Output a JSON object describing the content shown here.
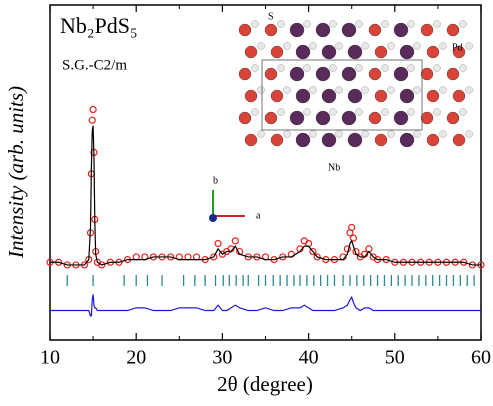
{
  "chart_data": {
    "type": "line",
    "title": "Nb₂PdS₅",
    "subtitle": "S.G.-C2/m",
    "xlabel": "2θ (degree)",
    "ylabel": "Intensity (arb. units)",
    "annotations": [
      "S",
      "Pd",
      "Nb",
      "b",
      "a"
    ],
    "xlim": [
      10,
      60
    ],
    "xticks": [
      10,
      20,
      30,
      40,
      50,
      60
    ],
    "xminorticks": [
      15,
      25,
      35,
      45,
      55
    ],
    "ylim": [
      0,
      125
    ],
    "x": [
      10,
      11,
      12,
      13,
      14,
      14.5,
      14.7,
      14.8,
      14.9,
      15.0,
      15.1,
      15.2,
      15.3,
      15.5,
      16,
      17,
      18,
      19,
      20,
      21,
      22,
      23,
      24,
      25,
      26,
      27,
      28,
      29,
      29.5,
      30,
      30.5,
      31,
      31.5,
      32,
      33,
      34,
      35,
      36,
      37,
      38,
      39,
      39.5,
      40,
      40.5,
      41,
      42,
      43,
      44,
      44.5,
      44.8,
      45,
      45.2,
      45.5,
      46,
      46.5,
      47,
      47.5,
      48,
      49,
      50,
      51,
      52,
      53,
      54,
      55,
      56,
      57,
      58,
      59,
      60
    ],
    "series": [
      {
        "color": "#e8201a",
        "style": "markers",
        "values": [
          29,
          29,
          28,
          28,
          28,
          30,
          40,
          62,
          82,
          86,
          70,
          45,
          33,
          29,
          28,
          29,
          29,
          30,
          31,
          31,
          31,
          31,
          31,
          31,
          31,
          31,
          30,
          31,
          36,
          32,
          33,
          34,
          37,
          33,
          31,
          31,
          31,
          30,
          31,
          32,
          34,
          37,
          36,
          33,
          31,
          30,
          30,
          31,
          34,
          40,
          42,
          38,
          33,
          31,
          32,
          34,
          31,
          30,
          30,
          29,
          29,
          29,
          29,
          29,
          29,
          29,
          29,
          29,
          28,
          28
        ]
      },
      {
        "color": "#000000",
        "style": "line",
        "values": [
          29,
          29,
          28,
          28,
          28,
          30,
          42,
          64,
          78,
          80,
          68,
          44,
          32,
          29,
          28,
          29,
          29,
          30,
          30,
          30,
          31,
          31,
          31,
          30,
          30,
          30,
          30,
          31,
          34,
          32,
          33,
          33,
          35,
          32,
          31,
          31,
          30,
          30,
          31,
          31,
          33,
          35,
          35,
          33,
          31,
          30,
          30,
          30,
          32,
          36,
          37,
          35,
          32,
          31,
          31,
          33,
          31,
          30,
          30,
          29,
          29,
          29,
          29,
          29,
          29,
          29,
          29,
          29,
          28,
          28
        ]
      },
      {
        "color": "#1a1adb",
        "style": "line",
        "values": [
          11,
          11,
          11,
          11,
          11,
          11,
          9,
          9,
          15,
          17,
          13,
          12,
          12,
          11,
          11,
          11,
          11,
          11,
          12,
          12,
          11,
          11,
          11,
          12,
          12,
          12,
          11,
          11,
          13,
          11,
          11,
          12,
          13,
          12,
          11,
          11,
          12,
          11,
          11,
          12,
          12,
          13,
          12,
          11,
          11,
          11,
          11,
          12,
          13,
          15,
          16,
          14,
          12,
          11,
          12,
          12,
          11,
          11,
          11,
          11,
          11,
          11,
          11,
          11,
          11,
          11,
          11,
          11,
          11,
          11
        ]
      }
    ],
    "bragg_color": "#2a8c8c",
    "bragg_positions": [
      12,
      15,
      18.6,
      20,
      21.3,
      23,
      25.5,
      26.8,
      28,
      29.2,
      30.1,
      30.8,
      31.6,
      32.4,
      33,
      34.2,
      35,
      35.9,
      36.7,
      37.5,
      38.3,
      39,
      39.8,
      40.6,
      41.4,
      42.2,
      43,
      44,
      44.8,
      45.6,
      46.4,
      47.2,
      48,
      48.8,
      49.6,
      50.4,
      51.2,
      52,
      52.8,
      53.6,
      54.4,
      55.2,
      56,
      56.8,
      57.6,
      58.4,
      59.2
    ]
  }
}
